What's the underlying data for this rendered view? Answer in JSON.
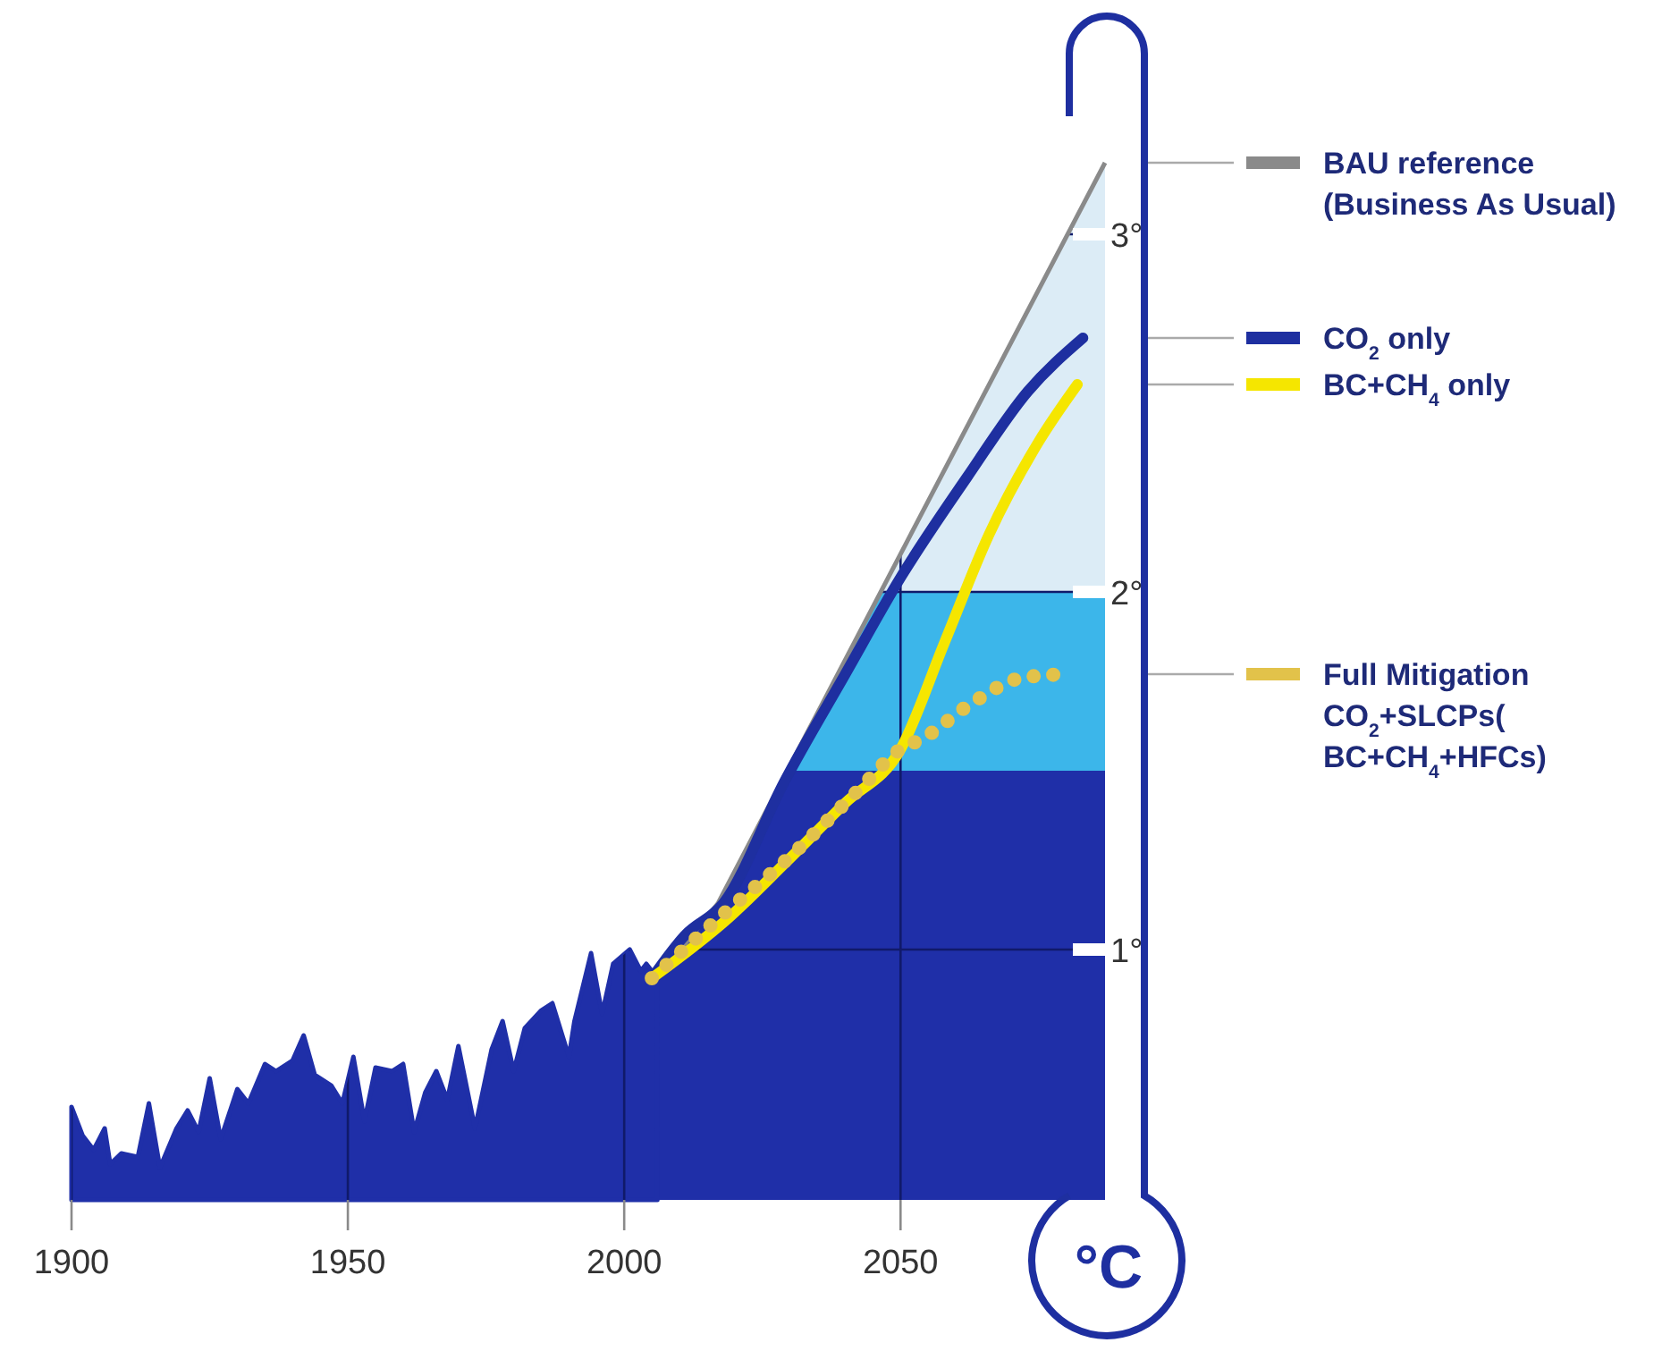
{
  "chart_data": {
    "type": "line",
    "ylabel": "°C",
    "xlim": [
      1900,
      2087
    ],
    "ylim": [
      0.3,
      3.35
    ],
    "xticks": [
      1900,
      1950,
      2000,
      2050
    ],
    "yticks": [
      {
        "value": 1,
        "label": "1°"
      },
      {
        "value": 2,
        "label": "2°"
      },
      {
        "value": 3,
        "label": "3°"
      }
    ],
    "grid": true,
    "legend": "right",
    "bands": [
      {
        "axis": "y",
        "from": 0.3,
        "to": 1.5,
        "color": "#1f2fa8"
      },
      {
        "axis": "y",
        "from": 1.5,
        "to": 2,
        "color": "#3cb6ea"
      },
      {
        "axis": "y",
        "from": 2,
        "to": 3.35,
        "color": "#dcecf6"
      }
    ],
    "series": [
      {
        "type": "area",
        "color": "#1f2fa8",
        "x": [
          1900,
          1902,
          1904,
          1906,
          1907,
          1909,
          1912,
          1914,
          1916,
          1919,
          1921,
          1923,
          1925,
          1927,
          1930,
          1932,
          1935,
          1937,
          1940,
          1942,
          1944,
          1947,
          1949,
          1951,
          1953,
          1955,
          1958,
          1960,
          1962,
          1964,
          1966,
          1968,
          1970,
          1973,
          1976,
          1978,
          1980,
          1982,
          1985,
          1987,
          1990,
          1991,
          1994,
          1996,
          1998,
          2001,
          2003,
          2004,
          2006
        ],
        "values": [
          0.56,
          0.48,
          0.44,
          0.5,
          0.4,
          0.43,
          0.42,
          0.57,
          0.39,
          0.5,
          0.55,
          0.49,
          0.64,
          0.47,
          0.61,
          0.57,
          0.68,
          0.66,
          0.69,
          0.76,
          0.65,
          0.62,
          0.57,
          0.7,
          0.52,
          0.67,
          0.66,
          0.68,
          0.49,
          0.6,
          0.66,
          0.58,
          0.73,
          0.5,
          0.72,
          0.8,
          0.66,
          0.78,
          0.83,
          0.85,
          0.7,
          0.8,
          0.99,
          0.82,
          0.96,
          1.0,
          0.94,
          0.96,
          0.92
        ]
      },
      {
        "name": "BAU reference (Business As Usual)",
        "line_style": "solid",
        "color": "#8a8a8a",
        "x": [
          2006,
          2017,
          2087
        ],
        "values": [
          0.92,
          1.13,
          3.2
        ]
      },
      {
        "name": "CO$_{2}$ only",
        "type": "line",
        "color": "#1e2fa0",
        "line_style": "solid",
        "x": [
          2005,
          2011,
          2018,
          2029,
          2040,
          2050,
          2062,
          2073,
          2083
        ],
        "values": [
          0.92,
          1.04,
          1.13,
          1.47,
          1.77,
          2.04,
          2.32,
          2.56,
          2.71
        ]
      },
      {
        "name": "BC+CH$_{4}$ only",
        "type": "line",
        "color": "#f5e600",
        "line_style": "solid",
        "x": [
          2005,
          2019,
          2029,
          2040,
          2050,
          2058,
          2066,
          2075,
          2082
        ],
        "values": [
          0.92,
          1.09,
          1.24,
          1.41,
          1.56,
          1.86,
          2.16,
          2.42,
          2.58
        ]
      },
      {
        "name": "Full Mitigation CO$_{2}$+SLCPs(BC+CH$_{4}$+HFCs)",
        "type": "line",
        "color": "#e2c24a",
        "line_style": "dotted",
        "x": [
          2005,
          2018,
          2030,
          2042,
          2050,
          2054,
          2063,
          2072,
          2080
        ],
        "values": [
          0.92,
          1.1,
          1.26,
          1.44,
          1.56,
          1.59,
          1.69,
          1.76,
          1.77
        ]
      }
    ]
  }
}
